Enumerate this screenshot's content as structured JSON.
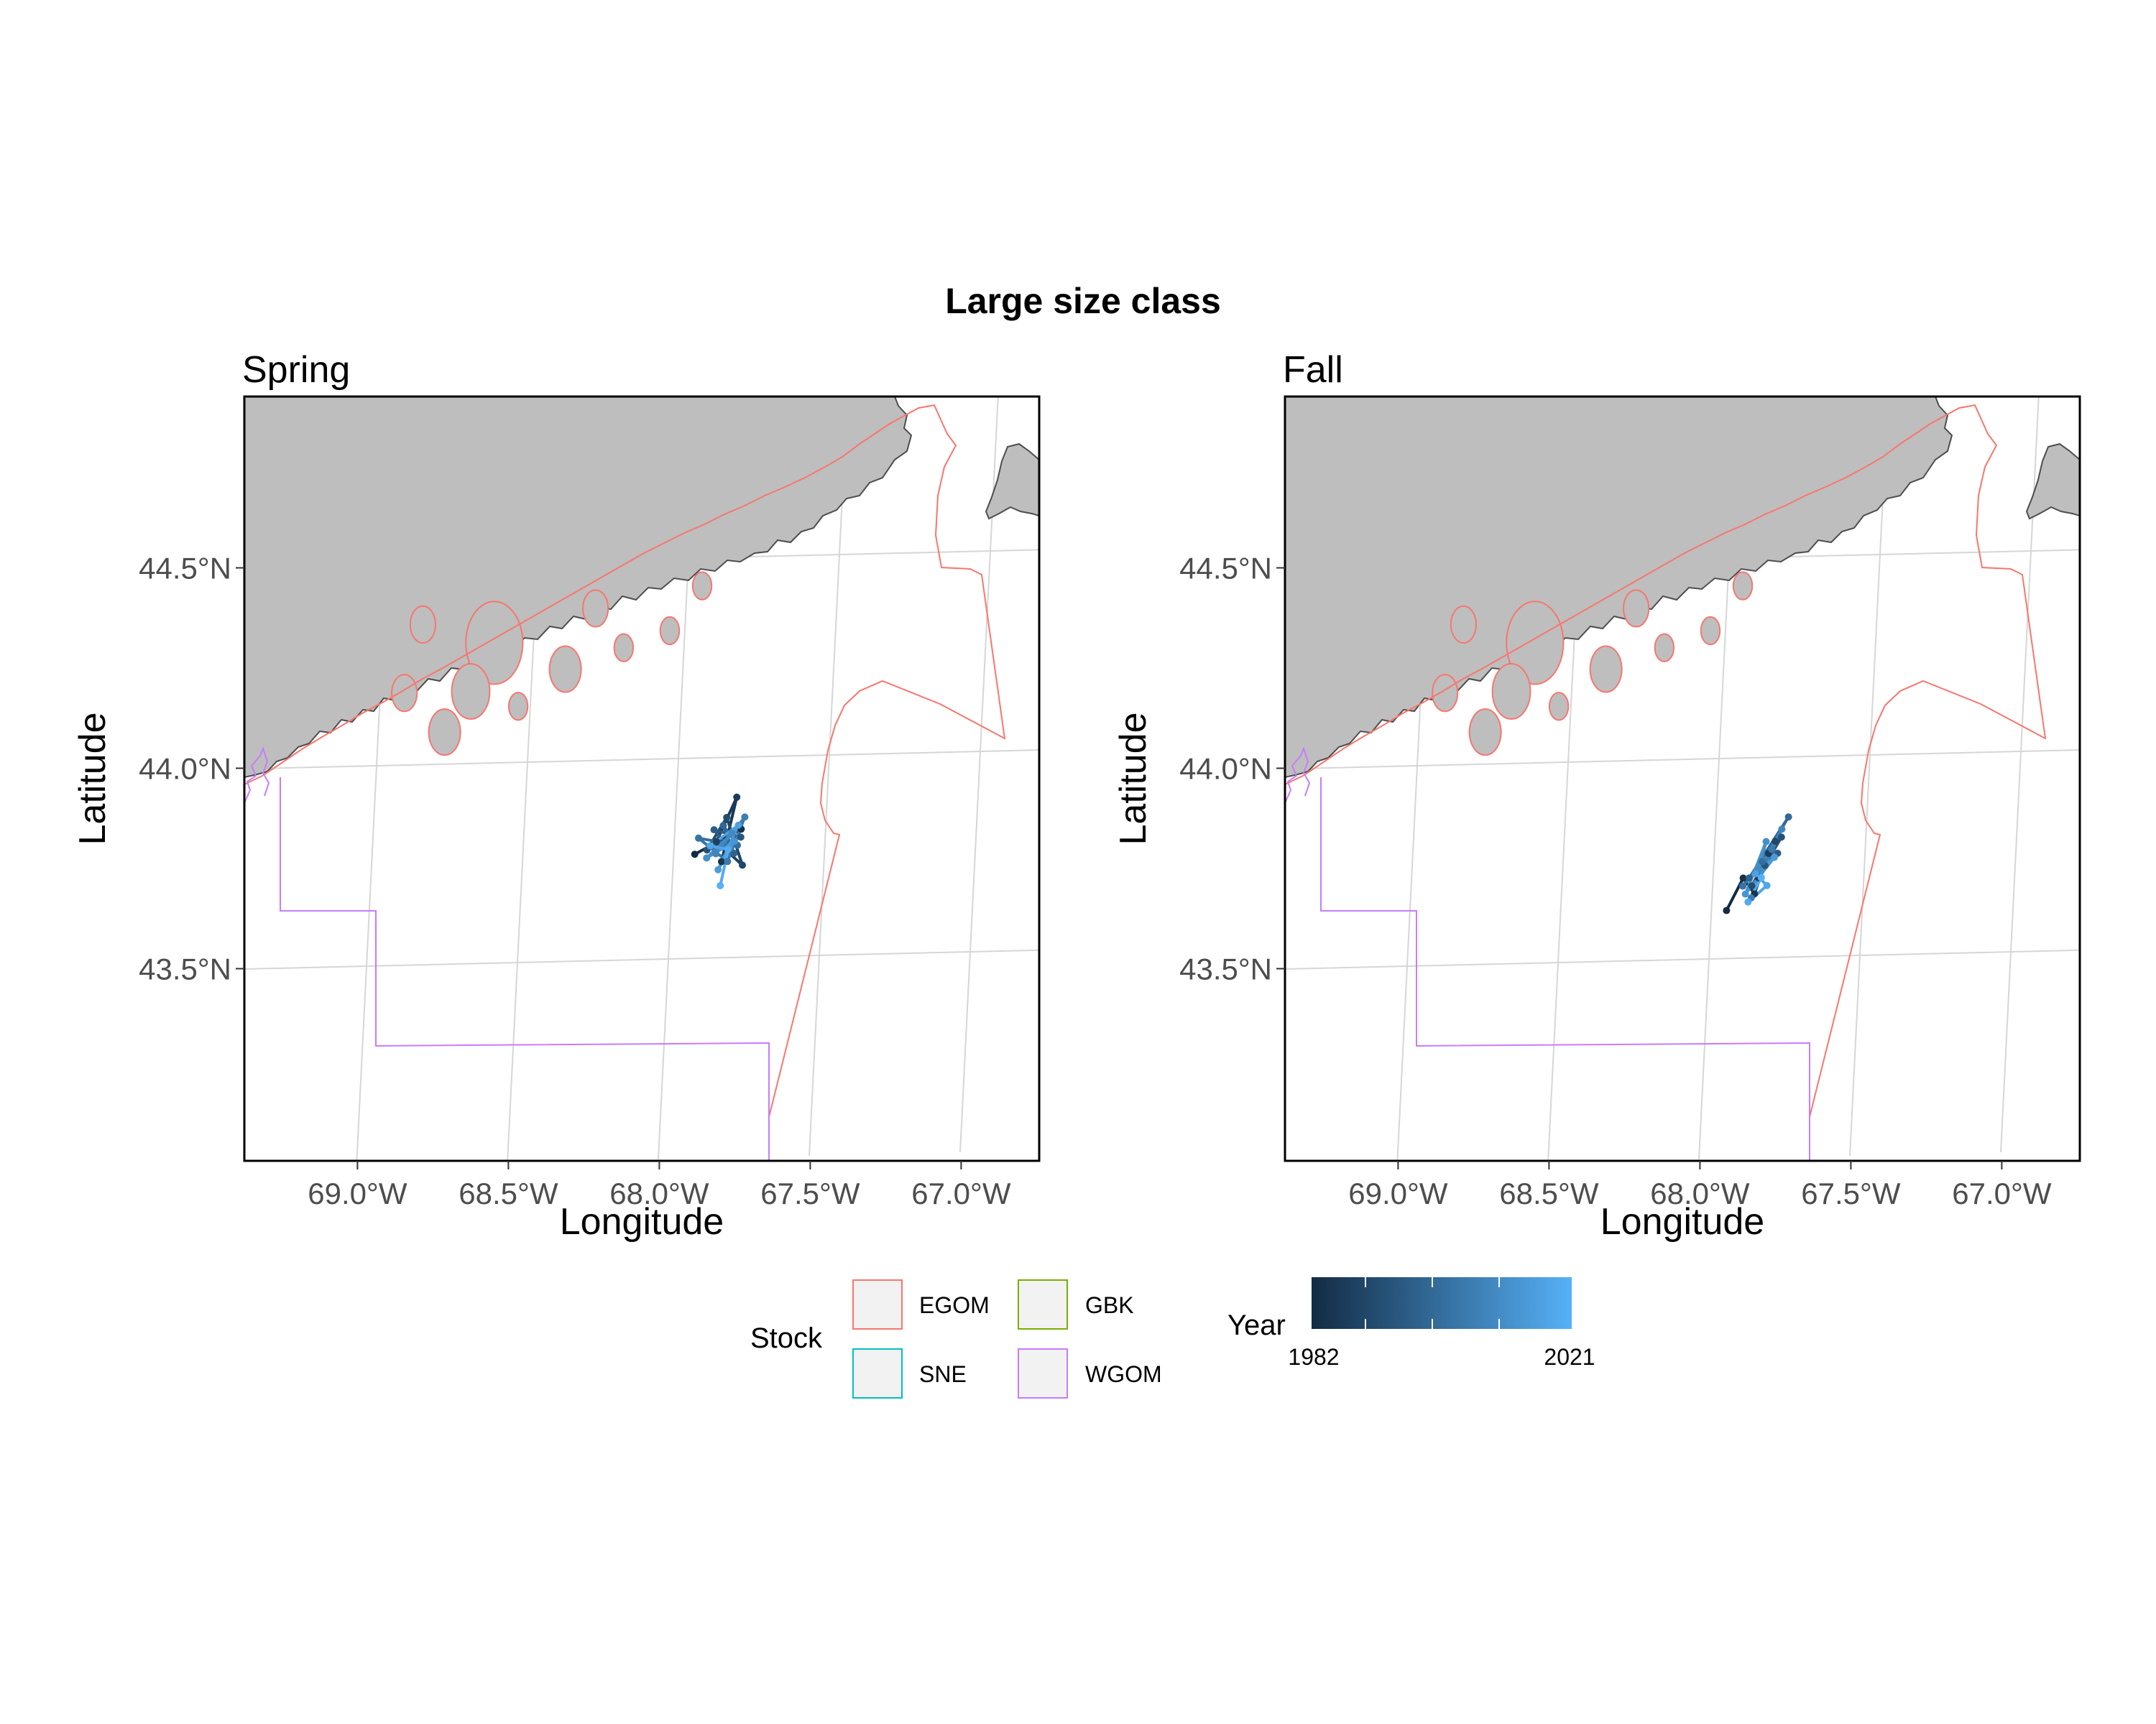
{
  "figure": {
    "title": "Large size class"
  },
  "axes": {
    "xlabel": "Longitude",
    "ylabel": "Latitude",
    "x_ticks": [
      "69.0°W",
      "68.5°W",
      "68.0°W",
      "67.5°W",
      "67.0°W"
    ],
    "y_ticks": [
      "44.5°N",
      "44.0°N",
      "43.5°N"
    ]
  },
  "panels": [
    {
      "label": "Spring",
      "track": [
        [
          -67.93,
          43.76
        ],
        [
          -67.78,
          43.82
        ],
        [
          -67.84,
          43.74
        ],
        [
          -67.8,
          43.9
        ],
        [
          -67.86,
          43.79
        ],
        [
          -67.77,
          43.73
        ],
        [
          -67.83,
          43.85
        ],
        [
          -67.89,
          43.77
        ],
        [
          -67.78,
          43.8
        ],
        [
          -67.87,
          43.82
        ],
        [
          -67.8,
          43.76
        ],
        [
          -67.84,
          43.83
        ],
        [
          -67.79,
          43.78
        ],
        [
          -67.92,
          43.8
        ],
        [
          -67.82,
          43.74
        ],
        [
          -67.77,
          43.85
        ],
        [
          -67.86,
          43.76
        ],
        [
          -67.81,
          43.81
        ],
        [
          -67.89,
          43.75
        ],
        [
          -67.8,
          43.79
        ],
        [
          -67.85,
          43.72
        ],
        [
          -67.79,
          43.83
        ],
        [
          -67.88,
          43.78
        ],
        [
          -67.82,
          43.77
        ],
        [
          -67.84,
          43.68
        ]
      ]
    },
    {
      "label": "Fall",
      "track": [
        [
          -67.95,
          43.62
        ],
        [
          -67.9,
          43.7
        ],
        [
          -67.86,
          43.66
        ],
        [
          -67.82,
          43.76
        ],
        [
          -67.85,
          43.7
        ],
        [
          -67.8,
          43.79
        ],
        [
          -67.87,
          43.68
        ],
        [
          -67.78,
          43.8
        ],
        [
          -67.83,
          43.73
        ],
        [
          -67.79,
          43.76
        ],
        [
          -67.88,
          43.7
        ],
        [
          -67.76,
          43.85
        ],
        [
          -67.84,
          43.74
        ],
        [
          -67.9,
          43.68
        ],
        [
          -67.81,
          43.77
        ],
        [
          -67.87,
          43.65
        ],
        [
          -67.78,
          43.82
        ],
        [
          -67.85,
          43.72
        ],
        [
          -67.83,
          43.79
        ],
        [
          -67.89,
          43.66
        ],
        [
          -67.8,
          43.75
        ],
        [
          -67.86,
          43.71
        ],
        [
          -67.82,
          43.68
        ],
        [
          -67.88,
          43.64
        ],
        [
          -67.84,
          43.7
        ]
      ]
    }
  ],
  "legend": {
    "stock_title": "Stock",
    "stocks": [
      {
        "name": "EGOM",
        "color": "#F8766D"
      },
      {
        "name": "GBK",
        "color": "#7CAE00"
      },
      {
        "name": "SNE",
        "color": "#00BFC4"
      },
      {
        "name": "WGOM",
        "color": "#C77CFF"
      }
    ],
    "year_title": "Year",
    "year_min": "1982",
    "year_max": "2021",
    "year_colors": [
      "#132B43",
      "#56B1F7"
    ]
  },
  "colors": {
    "land": "#BEBEBE",
    "land_outline": "#4D4D4D",
    "egom": "#F8766D",
    "wgom": "#C77CFF",
    "grid": "#D6D6D6",
    "axis_text": "#4D4D4D"
  }
}
